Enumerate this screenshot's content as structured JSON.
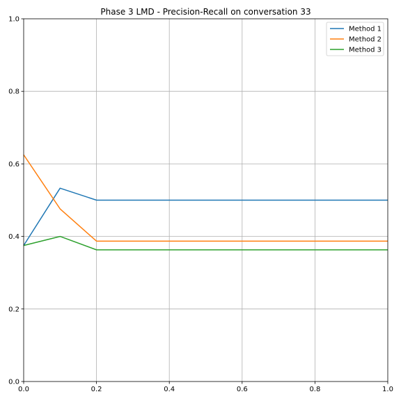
{
  "chart_data": {
    "type": "line",
    "title": "Phase 3 LMD - Precision-Recall on conversation 33",
    "xlabel": "",
    "ylabel": "",
    "xlim": [
      0,
      1
    ],
    "ylim": [
      0,
      1
    ],
    "x_ticks": [
      0.0,
      0.2,
      0.4,
      0.6,
      0.8,
      1.0
    ],
    "y_ticks": [
      0.0,
      0.2,
      0.4,
      0.6,
      0.8,
      1.0
    ],
    "x_tick_labels": [
      "0.0",
      "0.2",
      "0.4",
      "0.6",
      "0.8",
      "1.0"
    ],
    "y_tick_labels": [
      "0.0",
      "0.2",
      "0.4",
      "0.6",
      "0.8",
      "1.0"
    ],
    "grid": true,
    "legend_position": "top-right",
    "series": [
      {
        "name": "Method 1",
        "color": "#1f77b4",
        "x": [
          0.0,
          0.1,
          0.2,
          1.0
        ],
        "y": [
          0.375,
          0.533,
          0.5,
          0.5
        ]
      },
      {
        "name": "Method 2",
        "color": "#ff7f0e",
        "x": [
          0.0,
          0.1,
          0.2,
          1.0
        ],
        "y": [
          0.625,
          0.476,
          0.387,
          0.387
        ]
      },
      {
        "name": "Method 3",
        "color": "#2ca02c",
        "x": [
          0.0,
          0.1,
          0.2,
          1.0
        ],
        "y": [
          0.375,
          0.4,
          0.363,
          0.363
        ]
      }
    ]
  }
}
